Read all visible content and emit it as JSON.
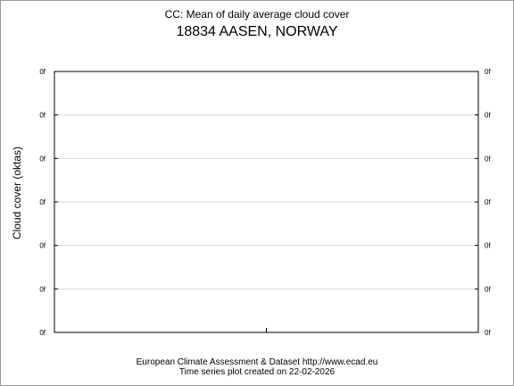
{
  "chart_data": {
    "type": "line",
    "title": "CC: Mean of daily average cloud cover",
    "subtitle": "18834 AASEN, NORWAY",
    "ylabel": "Cloud cover (oktas)",
    "xlabel": "",
    "y_tick_labels": [
      "0f",
      "0f",
      "0f",
      "0f",
      "0f",
      "0f",
      "0f"
    ],
    "series": [],
    "grid": true
  },
  "footer": {
    "line1": "European Climate Assessment & Dataset  http://www.ecad.eu",
    "line2": "Time series plot created on 22-02-2026"
  }
}
